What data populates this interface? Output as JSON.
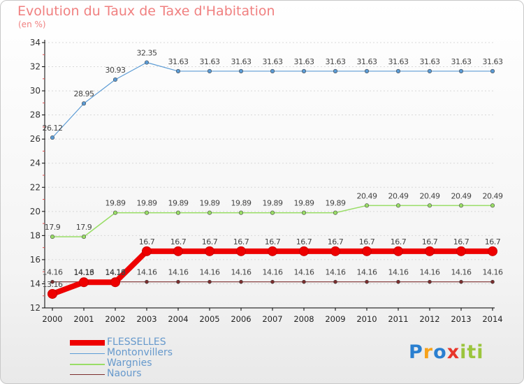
{
  "title": "Evolution du Taux de Taxe d'Habitation",
  "subtitle": "(en %)",
  "logo": {
    "letters": [
      "P",
      "r",
      "o",
      "x",
      "i",
      "t",
      "i"
    ],
    "colors": [
      "#2a7fd0",
      "#f7a21b",
      "#2a7fd0",
      "#e8352a",
      "#9bc53d",
      "#9bc53d",
      "#9bc53d"
    ]
  },
  "chart_data": {
    "type": "line",
    "title": "Evolution du Taux de Taxe d'Habitation",
    "ylabel": "(en %)",
    "xlabel": "",
    "ylim": [
      12,
      34
    ],
    "yticks": [
      12,
      14,
      16,
      18,
      20,
      22,
      24,
      26,
      28,
      30,
      32,
      34
    ],
    "x": [
      "2000",
      "2001",
      "2002",
      "2003",
      "2004",
      "2005",
      "2006",
      "2007",
      "2008",
      "2009",
      "2010",
      "2011",
      "2012",
      "2013",
      "2014"
    ],
    "series": [
      {
        "name": "Montonvillers",
        "color": "#5b9bd5",
        "width": 1.2,
        "dot": 5.5,
        "values": [
          26.12,
          28.95,
          30.93,
          32.35,
          31.63,
          31.63,
          31.63,
          31.63,
          31.63,
          31.63,
          31.63,
          31.63,
          31.63,
          31.63,
          31.63
        ]
      },
      {
        "name": "Wargnies",
        "color": "#99dd66",
        "width": 1.5,
        "dot": 5.5,
        "values": [
          17.9,
          17.9,
          19.89,
          19.89,
          19.89,
          19.89,
          19.89,
          19.89,
          19.89,
          19.89,
          20.49,
          20.49,
          20.49,
          20.49,
          20.49
        ]
      },
      {
        "name": "Naours",
        "color": "#7b2d2d",
        "width": 1.2,
        "dot": 5,
        "values": [
          14.16,
          14.16,
          14.16,
          14.16,
          14.16,
          14.16,
          14.16,
          14.16,
          14.16,
          14.16,
          14.16,
          14.16,
          14.16,
          14.16,
          14.16
        ]
      },
      {
        "name": "FLESSELLES",
        "color": "#ee0000",
        "width": 8,
        "dot": 13,
        "values": [
          13.16,
          14.13,
          14.13,
          16.7,
          16.7,
          16.7,
          16.7,
          16.7,
          16.7,
          16.7,
          16.7,
          16.7,
          16.7,
          16.7,
          16.7
        ]
      }
    ],
    "legend": [
      "FLESSELLES",
      "Montonvillers",
      "Wargnies",
      "Naours"
    ],
    "legend_position": "bottom-left"
  }
}
